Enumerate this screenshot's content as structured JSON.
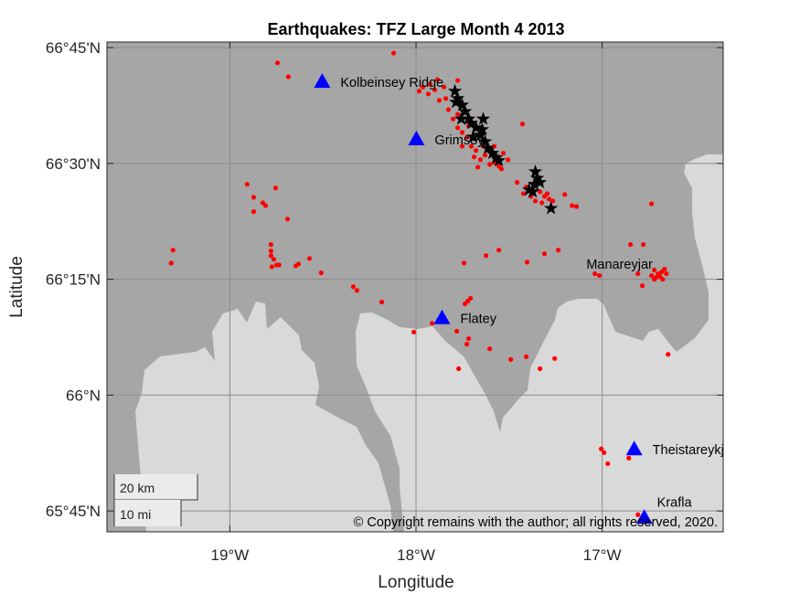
{
  "chart_data": {
    "type": "scatter",
    "title": "Earthquakes: TFZ Large Month 4 2013",
    "xlabel": "Longitude",
    "ylabel": "Latitude",
    "xlim": [
      -19.66,
      -16.35
    ],
    "ylim": [
      65.705,
      66.762
    ],
    "grid": true,
    "x_ticks": [
      {
        "value": -19,
        "label": "19°W"
      },
      {
        "value": -18,
        "label": "18°W"
      },
      {
        "value": -17,
        "label": "17°W"
      }
    ],
    "y_ticks": [
      {
        "value": 66.75,
        "label": "66°45'N"
      },
      {
        "value": 66.5,
        "label": "66°30'N"
      },
      {
        "value": 66.25,
        "label": "66°15'N"
      },
      {
        "value": 66.0,
        "label": "66°N"
      },
      {
        "value": 65.75,
        "label": "65°45'N"
      }
    ],
    "colors": {
      "sea": "#a6a6a6",
      "land": "#d9d9d9",
      "events": "#ff0000",
      "large_events": "#000000",
      "stations": "#0000ff"
    },
    "series": [
      {
        "name": "events",
        "marker": "dot",
        "points": [
          [
            -17.983,
            66.656
          ],
          [
            -17.963,
            66.665
          ],
          [
            -17.934,
            66.65
          ],
          [
            -17.899,
            66.659
          ],
          [
            -17.875,
            66.636
          ],
          [
            -17.84,
            66.64
          ],
          [
            -17.826,
            66.616
          ],
          [
            -17.801,
            66.596
          ],
          [
            -17.776,
            66.577
          ],
          [
            -17.752,
            66.567
          ],
          [
            -17.727,
            66.557
          ],
          [
            -17.703,
            66.537
          ],
          [
            -17.678,
            66.528
          ],
          [
            -17.688,
            66.514
          ],
          [
            -17.654,
            66.508
          ],
          [
            -17.629,
            66.518
          ],
          [
            -17.604,
            66.498
          ],
          [
            -17.58,
            66.502
          ],
          [
            -17.555,
            66.494
          ],
          [
            -17.639,
            66.537
          ],
          [
            -17.58,
            66.537
          ],
          [
            -17.776,
            66.606
          ],
          [
            -17.85,
            66.665
          ],
          [
            -17.924,
            66.671
          ],
          [
            -17.506,
            66.508
          ],
          [
            -17.541,
            66.488
          ],
          [
            -17.717,
            66.581
          ],
          [
            -17.752,
            66.537
          ],
          [
            -17.668,
            66.492
          ],
          [
            -17.408,
            66.449
          ],
          [
            -17.383,
            66.429
          ],
          [
            -17.334,
            66.439
          ],
          [
            -17.31,
            66.429
          ],
          [
            -17.295,
            66.435
          ],
          [
            -17.359,
            66.419
          ],
          [
            -17.423,
            66.435
          ],
          [
            -17.324,
            66.415
          ],
          [
            -17.285,
            66.423
          ],
          [
            -17.457,
            66.459
          ],
          [
            -17.531,
            66.522
          ],
          [
            -17.776,
            66.679
          ],
          [
            -17.885,
            66.681
          ],
          [
            -18.12,
            66.738
          ],
          [
            -18.744,
            66.717
          ],
          [
            -18.686,
            66.687
          ],
          [
            -18.907,
            66.455
          ],
          [
            -18.754,
            66.447
          ],
          [
            -18.872,
            66.427
          ],
          [
            -18.823,
            66.415
          ],
          [
            -18.808,
            66.409
          ],
          [
            -18.872,
            66.396
          ],
          [
            -18.69,
            66.38
          ],
          [
            -19.305,
            66.313
          ],
          [
            -19.315,
            66.285
          ],
          [
            -18.779,
            66.301
          ],
          [
            -18.764,
            66.293
          ],
          [
            -18.749,
            66.281
          ],
          [
            -18.774,
            66.277
          ],
          [
            -18.779,
            66.325
          ],
          [
            -18.779,
            66.311
          ],
          [
            -18.735,
            66.281
          ],
          [
            -18.646,
            66.279
          ],
          [
            -18.631,
            66.283
          ],
          [
            -18.572,
            66.295
          ],
          [
            -18.509,
            66.264
          ],
          [
            -18.337,
            66.234
          ],
          [
            -18.317,
            66.226
          ],
          [
            -18.184,
            66.201
          ],
          [
            -18.012,
            66.136
          ],
          [
            -17.914,
            66.155
          ],
          [
            -17.742,
            66.285
          ],
          [
            -17.624,
            66.301
          ],
          [
            -17.555,
            66.313
          ],
          [
            -17.403,
            66.287
          ],
          [
            -17.31,
            66.305
          ],
          [
            -17.236,
            66.313
          ],
          [
            -17.039,
            66.262
          ],
          [
            -17.015,
            66.258
          ],
          [
            -16.848,
            66.325
          ],
          [
            -16.779,
            66.325
          ],
          [
            -16.735,
            66.413
          ],
          [
            -16.646,
            66.088
          ],
          [
            -16.72,
            66.27
          ],
          [
            -16.7,
            66.262
          ],
          [
            -16.68,
            66.266
          ],
          [
            -16.665,
            66.272
          ],
          [
            -16.69,
            66.256
          ],
          [
            -16.71,
            66.254
          ],
          [
            -16.675,
            66.25
          ],
          [
            -16.655,
            66.262
          ],
          [
            -16.735,
            66.258
          ],
          [
            -16.72,
            66.25
          ],
          [
            -16.808,
            66.262
          ],
          [
            -16.784,
            66.236
          ],
          [
            -17.722,
            66.203
          ],
          [
            -17.707,
            66.209
          ],
          [
            -17.737,
            66.197
          ],
          [
            -17.781,
            66.138
          ],
          [
            -17.717,
            66.122
          ],
          [
            -17.727,
            66.11
          ],
          [
            -17.604,
            66.1
          ],
          [
            -17.491,
            66.077
          ],
          [
            -17.408,
            66.083
          ],
          [
            -17.255,
            66.079
          ],
          [
            -17.334,
            66.057
          ],
          [
            -17.771,
            66.057
          ],
          [
            -17.005,
            65.884
          ],
          [
            -16.99,
            65.876
          ],
          [
            -16.97,
            65.852
          ],
          [
            -16.857,
            65.864
          ],
          [
            -16.808,
            65.742
          ],
          [
            -17.428,
            66.585
          ],
          [
            -17.201,
            66.433
          ],
          [
            -17.162,
            66.409
          ],
          [
            -17.138,
            66.407
          ],
          [
            -17.265,
            66.419
          ]
        ]
      },
      {
        "name": "large events",
        "marker": "star",
        "points": [
          [
            -17.791,
            66.656
          ],
          [
            -17.776,
            66.64
          ],
          [
            -17.752,
            66.626
          ],
          [
            -17.737,
            66.612
          ],
          [
            -17.717,
            66.596
          ],
          [
            -17.703,
            66.587
          ],
          [
            -17.678,
            66.577
          ],
          [
            -17.639,
            66.596
          ],
          [
            -17.654,
            66.561
          ],
          [
            -17.629,
            66.547
          ],
          [
            -17.614,
            66.533
          ],
          [
            -17.59,
            66.522
          ],
          [
            -17.57,
            66.512
          ],
          [
            -17.693,
            66.557
          ],
          [
            -17.757,
            66.596
          ],
          [
            -17.786,
            66.632
          ],
          [
            -17.359,
            66.482
          ],
          [
            -17.349,
            66.468
          ],
          [
            -17.364,
            66.455
          ],
          [
            -17.373,
            66.439
          ],
          [
            -17.393,
            66.443
          ],
          [
            -17.334,
            66.459
          ],
          [
            -17.275,
            66.403
          ],
          [
            -17.644,
            66.573
          ],
          [
            -17.555,
            66.506
          ]
        ]
      }
    ],
    "stations": [
      {
        "name": "Kolbeinsey Ridge",
        "lon": -18.504,
        "lat": 66.677,
        "marker": true
      },
      {
        "name": "Grimsey",
        "lon": -17.998,
        "lat": 66.553,
        "marker": true
      },
      {
        "name": "Flatey",
        "lon": -17.86,
        "lat": 66.167,
        "marker": true
      },
      {
        "name": "Manareyjar",
        "lon": -17.085,
        "lat": 66.285,
        "marker": false
      },
      {
        "name": "Theistareykjarbunga",
        "lon": -16.828,
        "lat": 65.884,
        "marker": true
      },
      {
        "name": "Krafla",
        "lon": -16.774,
        "lat": 65.736,
        "marker": true
      }
    ],
    "scalebar": {
      "metric": "20 km",
      "imperial": "10 mi"
    },
    "attribution": "© Copyright remains with the author; all rights reserved, 2020."
  }
}
